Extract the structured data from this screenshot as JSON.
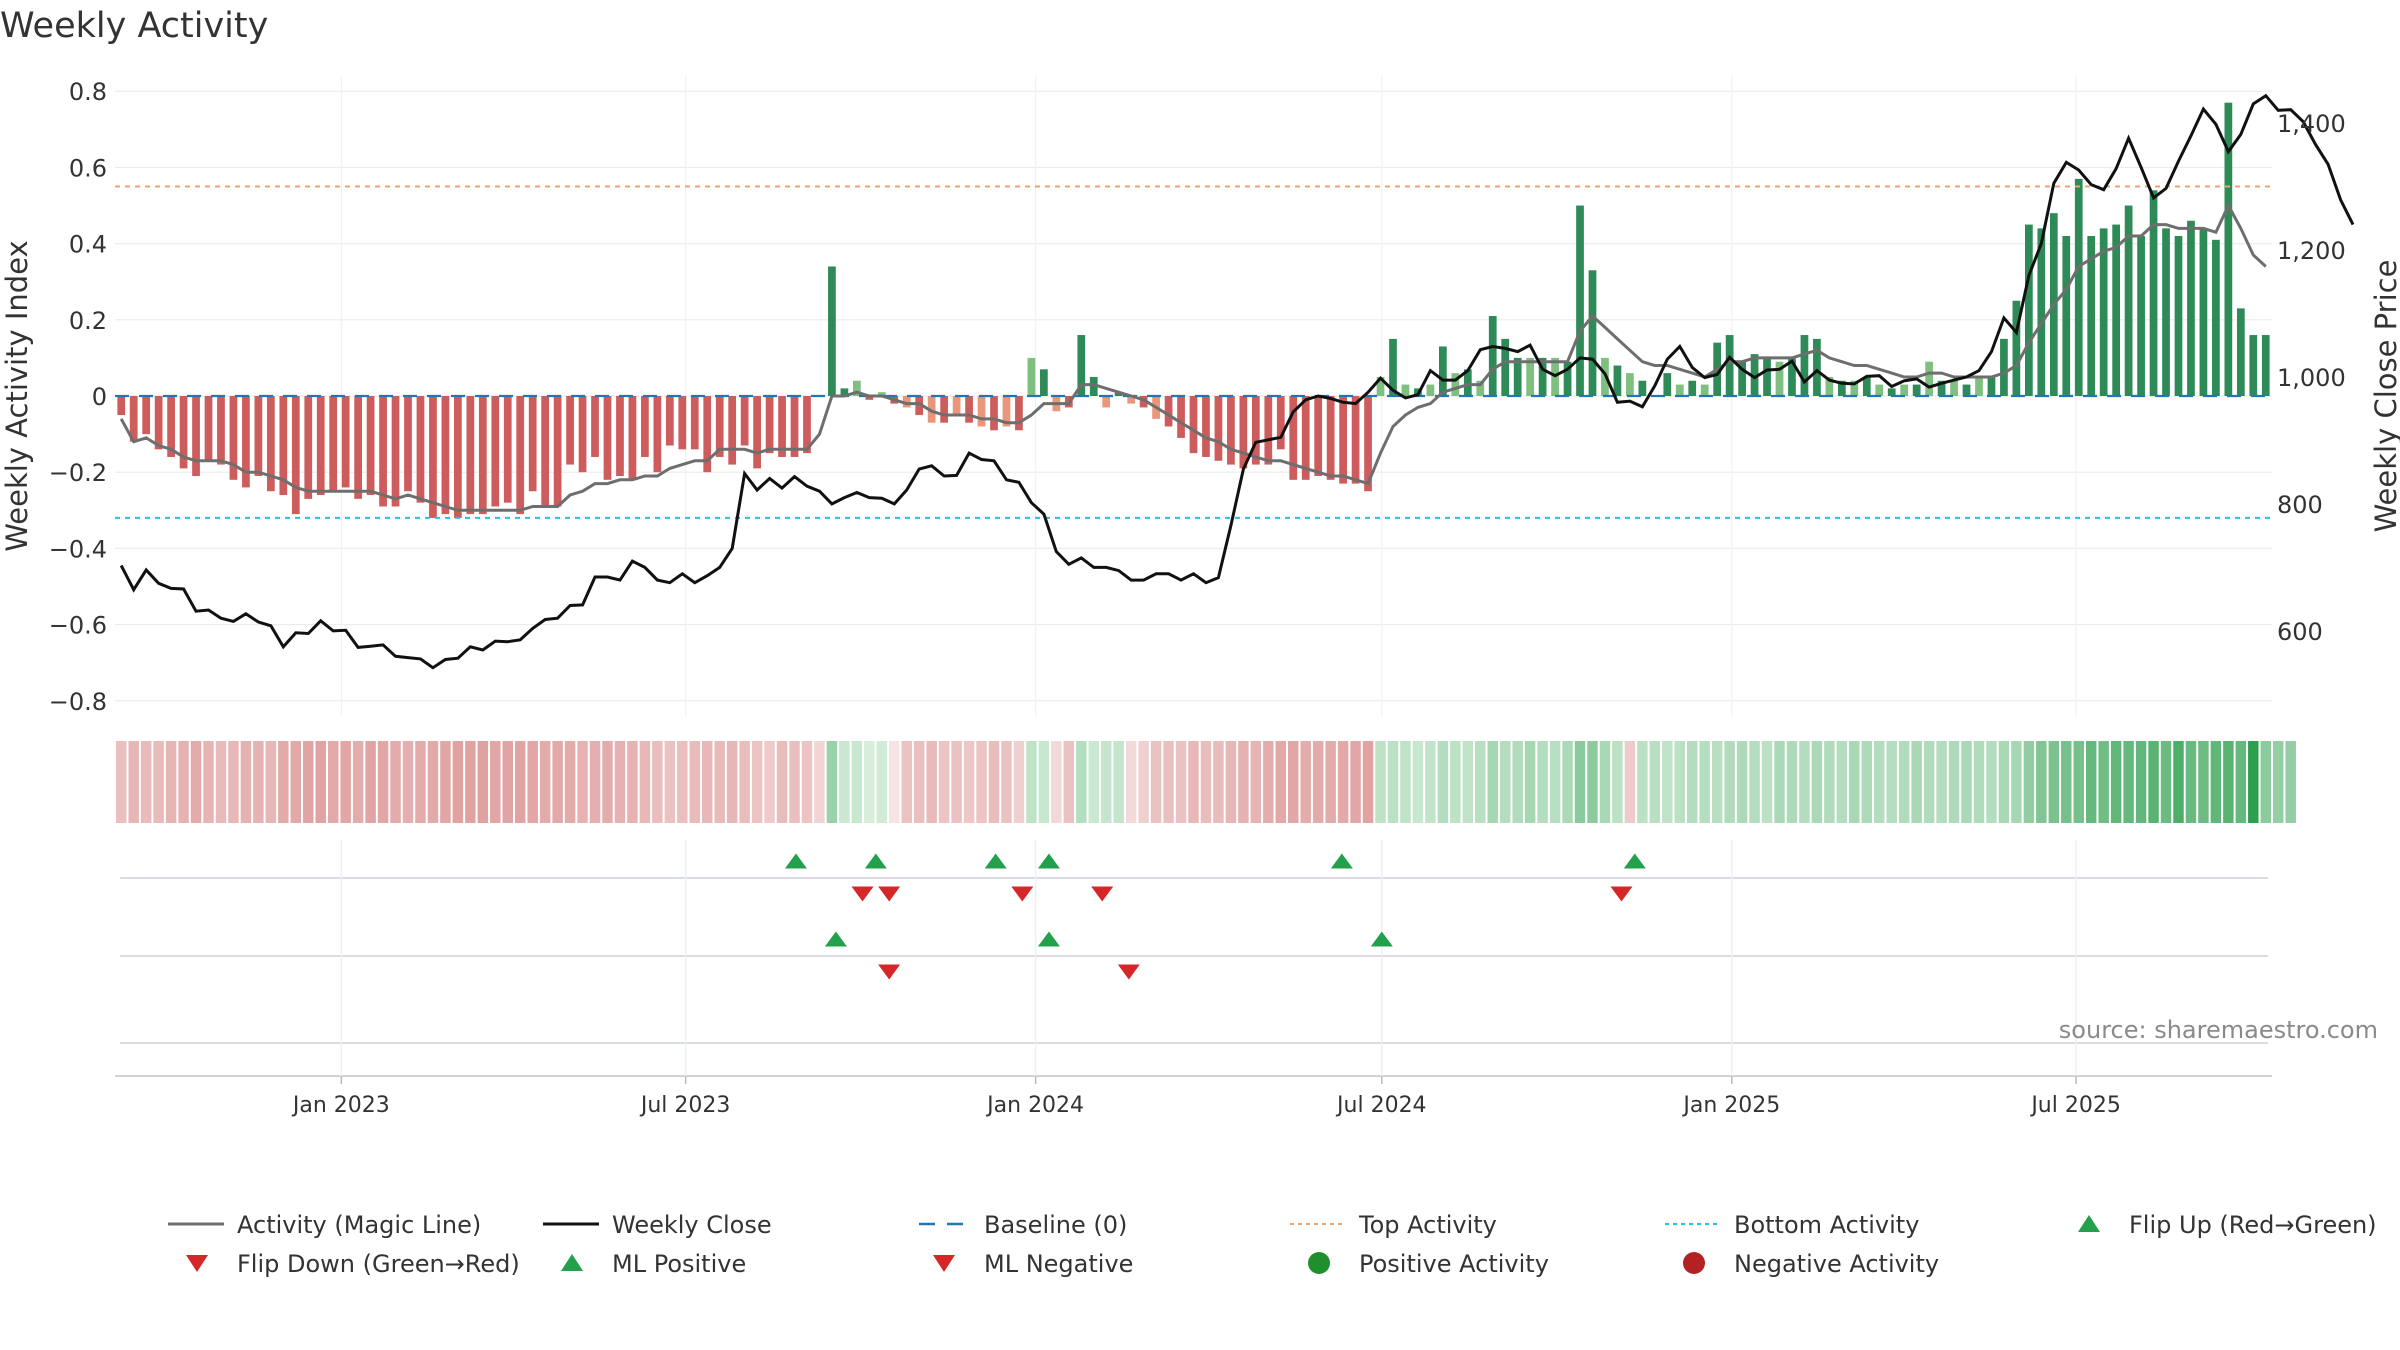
{
  "chart_data": {
    "type": "bar+line",
    "title": "Weekly Activity",
    "ylabel_left": "Weekly Activity Index",
    "ylabel_right": "Weekly Close Price",
    "source": "source: sharemaestro.com",
    "ylim_left": [
      -0.84,
      0.84
    ],
    "yticks_left": [
      {
        "v": 0.8,
        "label": "0.8"
      },
      {
        "v": 0.6,
        "label": "0.6"
      },
      {
        "v": 0.4,
        "label": "0.4"
      },
      {
        "v": 0.2,
        "label": "0.2"
      },
      {
        "v": 0,
        "label": "0"
      },
      {
        "v": -0.2,
        "label": "−0.2"
      },
      {
        "v": -0.4,
        "label": "−0.4"
      },
      {
        "v": -0.6,
        "label": "−0.6"
      },
      {
        "v": -0.8,
        "label": "−0.8"
      }
    ],
    "ylim_right": [
      466,
      1474
    ],
    "yticks_right": [
      {
        "v": 1400,
        "label": "1,400"
      },
      {
        "v": 1200,
        "label": "1,200"
      },
      {
        "v": 1000,
        "label": "1,000"
      },
      {
        "v": 800,
        "label": "800"
      },
      {
        "v": 600,
        "label": "600"
      }
    ],
    "x_start": "2022-09-04",
    "x_end": "2025-10-12",
    "xtick_labels": [
      {
        "date": "2023-01-01",
        "label": "Jan 2023"
      },
      {
        "date": "2023-07-01",
        "label": "Jul 2023"
      },
      {
        "date": "2024-01-01",
        "label": "Jan 2024"
      },
      {
        "date": "2024-07-01",
        "label": "Jul 2024"
      },
      {
        "date": "2025-01-01",
        "label": "Jan 2025"
      },
      {
        "date": "2025-07-01",
        "label": "Jul 2025"
      }
    ],
    "top_activity": 0.55,
    "bottom_activity": -0.32,
    "baseline": 0,
    "weekly_activity": [
      -0.05,
      -0.12,
      -0.1,
      -0.14,
      -0.16,
      -0.19,
      -0.21,
      -0.17,
      -0.18,
      -0.22,
      -0.24,
      -0.21,
      -0.25,
      -0.26,
      -0.31,
      -0.27,
      -0.26,
      -0.25,
      -0.24,
      -0.27,
      -0.26,
      -0.29,
      -0.29,
      -0.25,
      -0.28,
      -0.32,
      -0.31,
      -0.32,
      -0.31,
      -0.31,
      -0.29,
      -0.28,
      -0.31,
      -0.25,
      -0.29,
      -0.29,
      -0.18,
      -0.2,
      -0.16,
      -0.22,
      -0.21,
      -0.22,
      -0.16,
      -0.2,
      -0.13,
      -0.14,
      -0.14,
      -0.2,
      -0.16,
      -0.18,
      -0.13,
      -0.19,
      -0.15,
      -0.16,
      -0.16,
      -0.15,
      -0.0,
      0.34,
      0.02,
      0.04,
      -0.01,
      0.01,
      -0.02,
      -0.03,
      -0.05,
      -0.07,
      -0.07,
      -0.05,
      -0.07,
      -0.08,
      -0.09,
      -0.08,
      -0.09,
      0.1,
      0.07,
      -0.04,
      -0.03,
      0.16,
      0.05,
      -0.03,
      0.01,
      -0.02,
      -0.03,
      -0.06,
      -0.08,
      -0.11,
      -0.15,
      -0.16,
      -0.17,
      -0.18,
      -0.19,
      -0.18,
      -0.18,
      -0.14,
      -0.22,
      -0.22,
      -0.21,
      -0.22,
      -0.23,
      -0.23,
      -0.25,
      0.05,
      0.15,
      0.03,
      0.02,
      0.03,
      0.13,
      0.06,
      0.07,
      0.04,
      0.21,
      0.15,
      0.1,
      0.1,
      0.1,
      0.1,
      0.09,
      0.5,
      0.33,
      0.1,
      0.08,
      0.06,
      0.04,
      0.0,
      0.06,
      0.03,
      0.04,
      0.03,
      0.14,
      0.16,
      0.09,
      0.11,
      0.1,
      0.09,
      0.1,
      0.16,
      0.15,
      0.05,
      0.04,
      0.04,
      0.05,
      0.03,
      0.02,
      0.03,
      0.03,
      0.09,
      0.04,
      0.04,
      0.03,
      0.05,
      0.05,
      0.15,
      0.25,
      0.45,
      0.44,
      0.48,
      0.42,
      0.57,
      0.42,
      0.44,
      0.45,
      0.5,
      0.42,
      0.54,
      0.44,
      0.42,
      0.46,
      0.44,
      0.41,
      0.77,
      0.23,
      0.16,
      0.16
    ],
    "activity_magic_line": [
      -0.06,
      -0.12,
      -0.11,
      -0.13,
      -0.14,
      -0.16,
      -0.17,
      -0.17,
      -0.17,
      -0.18,
      -0.2,
      -0.2,
      -0.21,
      -0.22,
      -0.24,
      -0.25,
      -0.25,
      -0.25,
      -0.25,
      -0.25,
      -0.25,
      -0.26,
      -0.27,
      -0.26,
      -0.27,
      -0.28,
      -0.29,
      -0.3,
      -0.3,
      -0.3,
      -0.3,
      -0.3,
      -0.3,
      -0.29,
      -0.29,
      -0.29,
      -0.26,
      -0.25,
      -0.23,
      -0.23,
      -0.22,
      -0.22,
      -0.21,
      -0.21,
      -0.19,
      -0.18,
      -0.17,
      -0.17,
      -0.14,
      -0.14,
      -0.14,
      -0.15,
      -0.14,
      -0.14,
      -0.14,
      -0.14,
      -0.1,
      0.0,
      0.0,
      0.01,
      0.0,
      -0.0,
      -0.01,
      -0.02,
      -0.02,
      -0.04,
      -0.05,
      -0.05,
      -0.05,
      -0.06,
      -0.06,
      -0.07,
      -0.07,
      -0.05,
      -0.02,
      -0.02,
      -0.02,
      0.03,
      0.03,
      0.02,
      0.01,
      0.0,
      -0.01,
      -0.03,
      -0.05,
      -0.07,
      -0.09,
      -0.11,
      -0.12,
      -0.14,
      -0.15,
      -0.16,
      -0.17,
      -0.17,
      -0.18,
      -0.19,
      -0.2,
      -0.21,
      -0.21,
      -0.22,
      -0.23,
      -0.15,
      -0.08,
      -0.05,
      -0.03,
      -0.02,
      0.01,
      0.02,
      0.03,
      0.03,
      0.07,
      0.09,
      0.09,
      0.09,
      0.09,
      0.09,
      0.09,
      0.17,
      0.21,
      0.18,
      0.15,
      0.12,
      0.09,
      0.08,
      0.08,
      0.07,
      0.06,
      0.05,
      0.07,
      0.09,
      0.09,
      0.1,
      0.1,
      0.1,
      0.1,
      0.11,
      0.12,
      0.1,
      0.09,
      0.08,
      0.08,
      0.07,
      0.06,
      0.05,
      0.05,
      0.06,
      0.06,
      0.05,
      0.05,
      0.05,
      0.05,
      0.06,
      0.08,
      0.14,
      0.19,
      0.24,
      0.28,
      0.34,
      0.36,
      0.38,
      0.39,
      0.42,
      0.42,
      0.45,
      0.45,
      0.44,
      0.44,
      0.44,
      0.43,
      0.5,
      0.44,
      0.37,
      0.34
    ],
    "weekly_close": [
      703,
      665,
      696,
      675,
      667,
      666,
      631,
      633,
      620,
      615,
      627,
      614,
      608,
      575,
      597,
      596,
      616,
      600,
      601,
      574,
      576,
      578,
      560,
      558,
      556,
      542,
      555,
      557,
      575,
      570,
      584,
      583,
      586,
      604,
      618,
      620,
      640,
      641,
      685,
      685,
      680,
      710,
      700,
      680,
      676,
      690,
      676,
      687,
      700,
      730,
      848,
      822,
      840,
      825,
      843,
      828,
      820,
      800,
      810,
      818,
      810,
      809,
      800,
      822,
      855,
      860,
      844,
      845,
      880,
      870,
      868,
      838,
      834,
      802,
      784,
      725,
      705,
      715,
      700,
      700,
      695,
      680,
      680,
      690,
      690,
      680,
      690,
      676,
      684,
      766,
      855,
      897,
      901,
      905,
      945,
      964,
      970,
      966,
      960,
      958,
      976,
      998,
      979,
      967,
      972,
      1010,
      995,
      995,
      1010,
      1043,
      1048,
      1045,
      1040,
      1050,
      1012,
      1002,
      1012,
      1030,
      1028,
      1005,
      960,
      962,
      953,
      986,
      1028,
      1048,
      1015,
      999,
      1004,
      1031,
      1012,
      999,
      1011,
      1012,
      1025,
      992,
      1010,
      995,
      990,
      989,
      1001,
      1002,
      985,
      994,
      997,
      984,
      990,
      995,
      1000,
      1010,
      1040,
      1093,
      1070,
      1160,
      1210,
      1305,
      1338,
      1326,
      1303,
      1295,
      1328,
      1376,
      1330,
      1282,
      1297,
      1340,
      1380,
      1422,
      1398,
      1355,
      1382,
      1430,
      1443,
      1420,
      1421,
      1402,
      1366,
      1335,
      1279,
      1240
    ],
    "strip_values": [
      -0.22,
      -0.27,
      -0.24,
      -0.25,
      -0.28,
      -0.3,
      -0.33,
      -0.28,
      -0.25,
      -0.26,
      -0.3,
      -0.29,
      -0.27,
      -0.34,
      -0.35,
      -0.37,
      -0.38,
      -0.35,
      -0.36,
      -0.32,
      -0.37,
      -0.36,
      -0.33,
      -0.31,
      -0.33,
      -0.34,
      -0.36,
      -0.38,
      -0.38,
      -0.39,
      -0.36,
      -0.37,
      -0.37,
      -0.36,
      -0.33,
      -0.35,
      -0.33,
      -0.29,
      -0.31,
      -0.32,
      -0.3,
      -0.29,
      -0.26,
      -0.23,
      -0.2,
      -0.22,
      -0.24,
      -0.26,
      -0.25,
      -0.27,
      -0.23,
      -0.19,
      -0.16,
      -0.24,
      -0.22,
      -0.19,
      -0.1,
      0.3,
      0.11,
      0.12,
      0.06,
      0.08,
      -0.01,
      -0.2,
      -0.22,
      -0.25,
      -0.19,
      -0.21,
      -0.18,
      -0.19,
      -0.23,
      -0.2,
      -0.13,
      0.15,
      0.12,
      -0.08,
      -0.21,
      0.19,
      0.11,
      0.13,
      0.13,
      -0.07,
      -0.13,
      -0.2,
      -0.22,
      -0.2,
      -0.26,
      -0.23,
      -0.24,
      -0.27,
      -0.3,
      -0.28,
      -0.32,
      -0.35,
      -0.36,
      -0.32,
      -0.33,
      -0.33,
      -0.35,
      -0.36,
      -0.38,
      0.16,
      0.17,
      0.15,
      0.12,
      0.14,
      0.2,
      0.16,
      0.15,
      0.18,
      0.25,
      0.2,
      0.21,
      0.25,
      0.2,
      0.18,
      0.23,
      0.36,
      0.35,
      0.24,
      0.17,
      -0.15,
      0.17,
      0.18,
      0.15,
      0.17,
      0.2,
      0.19,
      0.18,
      0.21,
      0.22,
      0.2,
      0.17,
      0.23,
      0.22,
      0.2,
      0.23,
      0.21,
      0.2,
      0.24,
      0.22,
      0.2,
      0.19,
      0.21,
      0.24,
      0.21,
      0.2,
      0.22,
      0.23,
      0.21,
      0.2,
      0.24,
      0.25,
      0.33,
      0.4,
      0.42,
      0.44,
      0.44,
      0.5,
      0.46,
      0.52,
      0.5,
      0.51,
      0.55,
      0.48,
      0.6,
      0.49,
      0.47,
      0.52,
      0.55,
      0.5,
      0.72,
      0.35,
      0.32,
      0.32
    ],
    "markers": {
      "flip_up": [
        {
          "date": "2023-08-28",
          "row": 1
        },
        {
          "date": "2023-10-09",
          "row": 1
        },
        {
          "date": "2023-12-11",
          "row": 1
        },
        {
          "date": "2024-01-08",
          "row": 1
        },
        {
          "date": "2024-06-10",
          "row": 1
        },
        {
          "date": "2024-11-11",
          "row": 1
        }
      ],
      "flip_down": [
        {
          "date": "2023-10-02",
          "row": 1
        },
        {
          "date": "2023-10-16",
          "row": 1
        },
        {
          "date": "2023-12-25",
          "row": 1
        },
        {
          "date": "2024-02-05",
          "row": 1
        },
        {
          "date": "2024-11-04",
          "row": 1
        }
      ],
      "ml_positive": [
        {
          "date": "2023-09-18",
          "row": 2
        },
        {
          "date": "2024-01-08",
          "row": 2
        },
        {
          "date": "2024-07-01",
          "row": 2
        }
      ],
      "ml_negative": [
        {
          "date": "2023-10-16",
          "row": 2
        },
        {
          "date": "2024-02-19",
          "row": 2
        }
      ]
    },
    "legend": [
      {
        "key": "magic_line",
        "label": "Activity (Magic Line)",
        "kind": "line",
        "color": "#6e6e6e"
      },
      {
        "key": "weekly_close",
        "label": "Weekly Close",
        "kind": "line",
        "color": "#111111"
      },
      {
        "key": "baseline",
        "label": "Baseline (0)",
        "kind": "dash",
        "color": "#1f77b4"
      },
      {
        "key": "top",
        "label": "Top Activity",
        "kind": "dot",
        "color": "#f4a261"
      },
      {
        "key": "bottom",
        "label": "Bottom Activity",
        "kind": "dot",
        "color": "#22c3e6"
      },
      {
        "key": "flip_up",
        "label": "Flip Up (Red→Green)",
        "kind": "tri-up",
        "color": "#22a04b"
      },
      {
        "key": "flip_down",
        "label": "Flip Down (Green→Red)",
        "kind": "tri-down",
        "color": "#d62728"
      },
      {
        "key": "ml_positive",
        "label": "ML Positive",
        "kind": "tri-up",
        "color": "#22a04b"
      },
      {
        "key": "ml_negative",
        "label": "ML Negative",
        "kind": "tri-down",
        "color": "#d62728"
      },
      {
        "key": "positive",
        "label": "Positive Activity",
        "kind": "circle",
        "color": "#1f8f2e"
      },
      {
        "key": "negative",
        "label": "Negative Activity",
        "kind": "circle",
        "color": "#b22222"
      }
    ],
    "colors": {
      "pos_strong": "#2e8b57",
      "pos_weak": "#7fbf7f",
      "neg_strong": "#cd5c5c",
      "neg_weak": "#e9967a",
      "magic_line": "#6e6e6e",
      "close": "#111111"
    }
  }
}
